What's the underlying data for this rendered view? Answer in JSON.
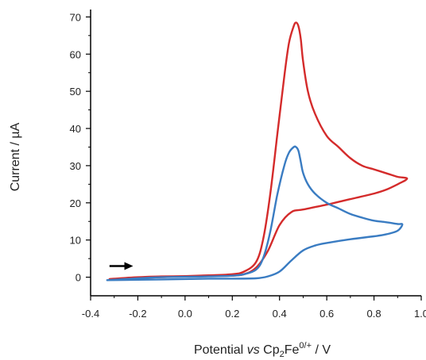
{
  "chart_data": {
    "type": "line",
    "xlabel": {
      "prefix": "Potential ",
      "italic": "vs",
      "mid": " Cp",
      "sub": "2",
      "fe": "Fe",
      "sup": "0/+",
      "suffix": " / V"
    },
    "ylabel": "Current / µA",
    "xlim": [
      -0.4,
      1.0
    ],
    "ylim": [
      -5,
      72
    ],
    "xticks": [
      "-0.4",
      "-0.2",
      "0.0",
      "0.2",
      "0.4",
      "0.6",
      "0.8",
      "1.0"
    ],
    "yticks": [
      "0",
      "10",
      "20",
      "30",
      "40",
      "50",
      "60",
      "70"
    ],
    "grid": false,
    "legend": "none",
    "sweep_arrow": {
      "from": [
        -0.32,
        3.0
      ],
      "to": [
        -0.22,
        3.0
      ],
      "direction": "right"
    },
    "series": [
      {
        "color": "#d42b2b",
        "x": [
          -0.32,
          -0.2,
          -0.1,
          0.0,
          0.1,
          0.2,
          0.25,
          0.3,
          0.33,
          0.36,
          0.39,
          0.42,
          0.44,
          0.46,
          0.47,
          0.48,
          0.49,
          0.5,
          0.52,
          0.55,
          0.6,
          0.65,
          0.7,
          0.75,
          0.8,
          0.85,
          0.9,
          0.94,
          0.9,
          0.85,
          0.8,
          0.7,
          0.6,
          0.5,
          0.45,
          0.4,
          0.35,
          0.3,
          0.25,
          0.2,
          0.1,
          0.0,
          -0.1,
          -0.2,
          -0.3,
          -0.32
        ],
        "y": [
          -0.5,
          0.0,
          0.2,
          0.3,
          0.5,
          0.8,
          1.5,
          4.0,
          10.0,
          22.0,
          38.0,
          54.0,
          63.0,
          67.5,
          68.5,
          67.5,
          64.0,
          58.0,
          50.0,
          44.0,
          38.0,
          35.0,
          32.0,
          30.0,
          29.0,
          28.0,
          27.0,
          26.5,
          25.0,
          23.5,
          22.5,
          21.0,
          19.5,
          18.2,
          17.5,
          14.0,
          7.0,
          2.5,
          0.8,
          0.4,
          0.3,
          0.2,
          0.0,
          -0.2,
          -0.4,
          -0.5
        ]
      },
      {
        "color": "#3a7cc2",
        "x": [
          -0.33,
          -0.2,
          -0.1,
          0.0,
          0.1,
          0.2,
          0.25,
          0.3,
          0.33,
          0.36,
          0.39,
          0.42,
          0.44,
          0.46,
          0.47,
          0.48,
          0.49,
          0.5,
          0.52,
          0.55,
          0.6,
          0.65,
          0.7,
          0.75,
          0.8,
          0.85,
          0.9,
          0.92,
          0.9,
          0.85,
          0.8,
          0.7,
          0.6,
          0.55,
          0.5,
          0.45,
          0.4,
          0.35,
          0.3,
          0.2,
          0.1,
          0.0,
          -0.1,
          -0.2,
          -0.33
        ],
        "y": [
          -0.8,
          -0.3,
          0.0,
          0.1,
          0.2,
          0.4,
          0.8,
          2.0,
          5.0,
          12.0,
          22.0,
          30.0,
          33.5,
          35.0,
          35.0,
          34.0,
          31.0,
          28.0,
          25.0,
          22.5,
          20.0,
          18.5,
          17.0,
          16.0,
          15.2,
          14.8,
          14.3,
          14.2,
          12.5,
          11.5,
          11.0,
          10.2,
          9.2,
          8.5,
          7.2,
          4.5,
          1.5,
          0.2,
          -0.3,
          -0.4,
          -0.4,
          -0.5,
          -0.6,
          -0.7,
          -0.8
        ]
      }
    ]
  }
}
